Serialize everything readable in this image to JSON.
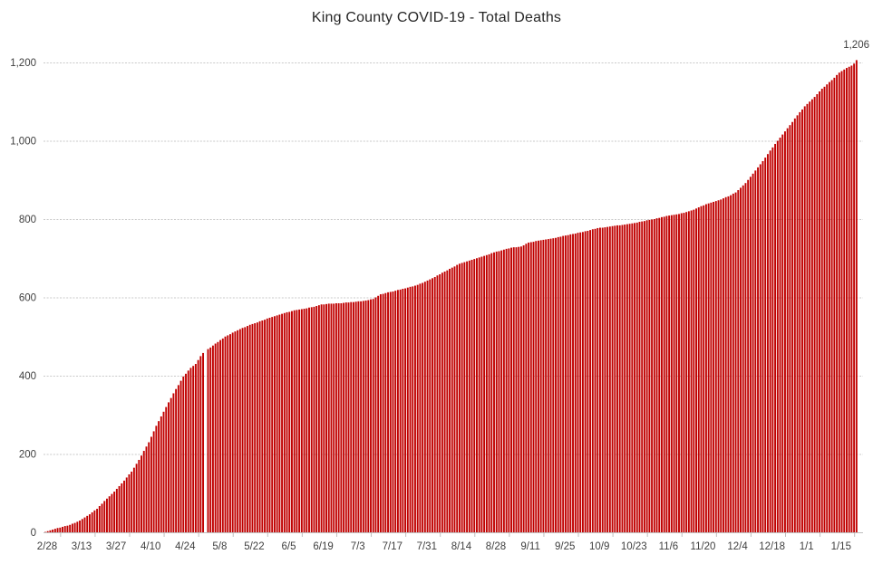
{
  "chart_data": {
    "type": "bar",
    "title": "King County COVID-19 - Total Deaths",
    "xlabel": "",
    "ylabel": "",
    "x_unit": "day",
    "start_label": "2/28",
    "x_tick_interval_days": 14,
    "x_tick_labels": [
      "2/28",
      "3/13",
      "3/27",
      "4/10",
      "4/24",
      "5/8",
      "5/22",
      "6/5",
      "6/19",
      "7/3",
      "7/17",
      "7/31",
      "8/14",
      "8/28",
      "9/11",
      "9/25",
      "10/9",
      "10/23",
      "11/6",
      "11/20",
      "12/4",
      "12/18",
      "1/1",
      "1/15"
    ],
    "y_ticks": [
      0,
      200,
      400,
      600,
      800,
      1000,
      1200
    ],
    "y_tick_labels": [
      "0",
      "200",
      "400",
      "600",
      "800",
      "1,000",
      "1,200"
    ],
    "ylim": [
      0,
      1200
    ],
    "grid": "horizontal-dashed",
    "legend": "none",
    "last_value_label": "1,206",
    "last_value": 1206,
    "bar_color": "#C00000",
    "grid_color": "#C9C9C9",
    "axis_line_color": "#BFBFBF",
    "text_color": "#404040",
    "values": [
      1,
      3,
      5,
      7,
      9,
      11,
      12,
      14,
      16,
      17,
      19,
      22,
      24,
      27,
      30,
      34,
      38,
      42,
      46,
      51,
      56,
      60,
      67,
      73,
      80,
      86,
      92,
      98,
      104,
      111,
      118,
      125,
      132,
      140,
      148,
      155,
      165,
      175,
      185,
      196,
      208,
      219,
      230,
      244,
      258,
      272,
      284,
      296,
      308,
      320,
      332,
      343,
      355,
      366,
      376,
      387,
      398,
      405,
      413,
      420,
      425,
      430,
      440,
      450,
      458,
      null,
      468,
      472,
      477,
      482,
      486,
      491,
      495,
      500,
      503,
      506,
      510,
      513,
      516,
      519,
      522,
      524,
      527,
      530,
      532,
      534,
      536,
      539,
      541,
      543,
      546,
      548,
      550,
      552,
      554,
      556,
      558,
      560,
      562,
      563,
      565,
      567,
      568,
      569,
      570,
      571,
      572,
      574,
      575,
      576,
      578,
      580,
      582,
      582,
      583,
      584,
      584,
      584,
      585,
      585,
      585,
      586,
      587,
      587,
      588,
      588,
      589,
      590,
      590,
      591,
      592,
      593,
      595,
      596,
      600,
      604,
      608,
      609,
      611,
      613,
      614,
      615,
      617,
      619,
      620,
      622,
      623,
      625,
      627,
      628,
      630,
      632,
      635,
      637,
      640,
      643,
      646,
      649,
      652,
      656,
      659,
      663,
      666,
      669,
      673,
      676,
      679,
      683,
      686,
      688,
      690,
      692,
      694,
      696,
      698,
      700,
      702,
      704,
      706,
      708,
      710,
      713,
      715,
      717,
      718,
      720,
      722,
      724,
      725,
      727,
      728,
      728,
      729,
      730,
      733,
      737,
      740,
      741,
      742,
      744,
      745,
      746,
      747,
      748,
      749,
      750,
      751,
      752,
      754,
      755,
      757,
      758,
      759,
      761,
      762,
      763,
      765,
      766,
      767,
      769,
      770,
      772,
      774,
      775,
      777,
      778,
      778,
      779,
      780,
      781,
      782,
      783,
      784,
      784,
      785,
      786,
      787,
      788,
      789,
      790,
      791,
      793,
      794,
      795,
      797,
      798,
      799,
      800,
      802,
      803,
      805,
      806,
      808,
      809,
      810,
      811,
      812,
      813,
      815,
      816,
      818,
      820,
      822,
      824,
      827,
      830,
      833,
      835,
      838,
      840,
      842,
      844,
      846,
      848,
      850,
      853,
      856,
      858,
      861,
      865,
      868,
      874,
      880,
      886,
      892,
      900,
      908,
      916,
      924,
      932,
      940,
      948,
      957,
      966,
      975,
      983,
      992,
      1000,
      1008,
      1016,
      1024,
      1032,
      1040,
      1048,
      1057,
      1065,
      1073,
      1080,
      1088,
      1094,
      1100,
      1106,
      1112,
      1119,
      1126,
      1133,
      1138,
      1144,
      1150,
      1155,
      1161,
      1168,
      1174,
      1178,
      1182,
      1186,
      1189,
      1192,
      1197,
      1206
    ]
  }
}
